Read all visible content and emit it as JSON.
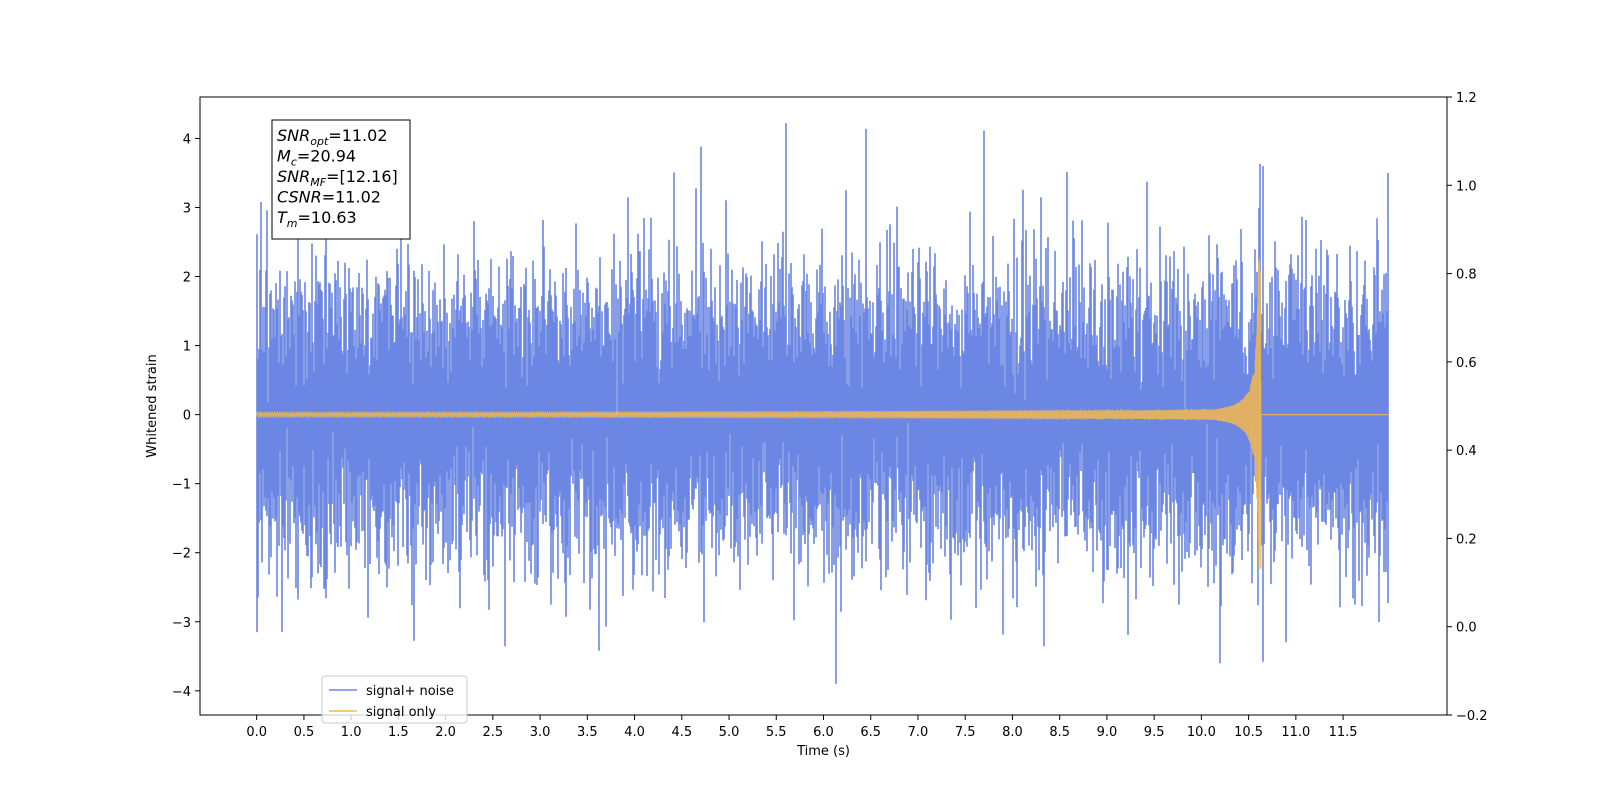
{
  "chart_data": {
    "type": "line",
    "title": "",
    "xlabel": "Time (s)",
    "ylabel": "Whitened strain",
    "xlim": [
      -0.6,
      12.6
    ],
    "ylim": [
      -4.35,
      4.6
    ],
    "y2lim": [
      -0.2,
      1.2
    ],
    "x_ticks": [
      0.0,
      0.5,
      1.0,
      1.5,
      2.0,
      2.5,
      3.0,
      3.5,
      4.0,
      4.5,
      5.0,
      5.5,
      6.0,
      6.5,
      7.0,
      7.5,
      8.0,
      8.5,
      9.0,
      9.5,
      10.0,
      10.5,
      11.0,
      11.5
    ],
    "x_tick_labels": [
      "0.0",
      "0.5",
      "1.0",
      "1.5",
      "2.0",
      "2.5",
      "3.0",
      "3.5",
      "4.0",
      "4.5",
      "5.0",
      "5.5",
      "6.0",
      "6.5",
      "7.0",
      "7.5",
      "8.0",
      "8.5",
      "9.0",
      "9.5",
      "10.0",
      "10.5",
      "11.0",
      "11.5"
    ],
    "y_ticks": [
      -4,
      -3,
      -2,
      -1,
      0,
      1,
      2,
      3,
      4
    ],
    "y_tick_labels": [
      "−4",
      "−3",
      "−2",
      "−1",
      "0",
      "1",
      "2",
      "3",
      "4"
    ],
    "y2_ticks": [
      -0.2,
      0.0,
      0.2,
      0.4,
      0.6,
      0.8,
      1.0,
      1.2
    ],
    "y2_tick_labels": [
      "−0.2",
      "0.0",
      "0.2",
      "0.4",
      "0.6",
      "0.8",
      "1.0",
      "1.2"
    ],
    "grid": false,
    "legend_position": "lower-left",
    "series": [
      {
        "name": "signal+ noise",
        "color": "#6b87e3",
        "kind": "noisy strain time series",
        "t_start": 0.0,
        "t_end": 11.98,
        "envelope_p95": 2.0,
        "max": 4.22,
        "min": -3.9,
        "peaks": [
          [
            0.05,
            3.08
          ],
          [
            5.6,
            4.22
          ],
          [
            4.7,
            3.88
          ],
          [
            6.45,
            4.14
          ],
          [
            7.7,
            4.11
          ],
          [
            10.65,
            3.6
          ],
          [
            11.98,
            3.5
          ],
          [
            6.13,
            -3.9
          ],
          [
            10.2,
            -3.6
          ],
          [
            3.62,
            -3.42
          ],
          [
            0.27,
            -3.15
          ],
          [
            0.0,
            -3.15
          ],
          [
            10.65,
            -3.58
          ]
        ]
      },
      {
        "name": "signal only",
        "color": "#f5b94d",
        "kind": "chirp waveform",
        "t_start": 0.0,
        "t_merger": 10.63,
        "t_end": 11.98,
        "peak_amplitude": 2.25
      }
    ],
    "annotation": {
      "lines": [
        {
          "label": "SNR",
          "sub": "opt",
          "value": "=11.02"
        },
        {
          "label": "M",
          "sub": "c",
          "value": "=20.94"
        },
        {
          "label": "SNR",
          "sub": "MF",
          "value": "=[12.16]"
        },
        {
          "label": "CSNR",
          "sub": "",
          "value": "=11.02"
        },
        {
          "label": "T",
          "sub": "m",
          "value": "=10.63"
        }
      ]
    }
  }
}
